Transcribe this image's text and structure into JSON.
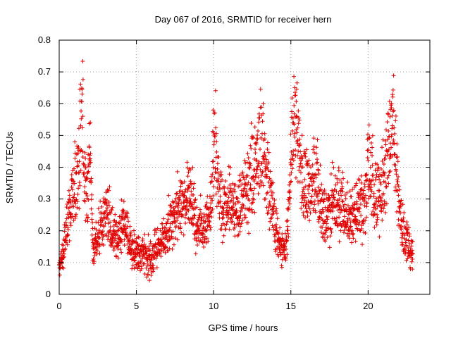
{
  "chart_data": {
    "type": "scatter",
    "marker": "+",
    "color": "#e00000",
    "title": "Day 067 of 2016, SRMTID for receiver hern",
    "xlabel": "GPS time / hours",
    "ylabel": "SRMTID / TECUs",
    "xlim": [
      0,
      24
    ],
    "ylim": [
      0,
      0.8
    ],
    "xticks": [
      0,
      5,
      10,
      15,
      20
    ],
    "xtick_labels": [
      "0",
      "5",
      "10",
      "15",
      "20"
    ],
    "yticks": [
      0,
      0.1,
      0.2,
      0.3,
      0.4,
      0.5,
      0.6,
      0.7,
      0.8
    ],
    "ytick_labels": [
      "0",
      "0.1",
      "0.2",
      "0.3",
      "0.4",
      "0.5",
      "0.6",
      "0.7",
      "0.8"
    ],
    "grid": true,
    "x_extent": [
      0,
      22.9
    ],
    "series": [
      {
        "name": "SRMTID",
        "approx_points": 2200,
        "x": [
          0,
          0.05,
          0.1,
          0.15,
          0.2,
          0.3,
          0.4,
          0.5,
          0.6,
          0.7,
          0.8,
          0.9,
          1.0,
          1.1,
          1.2,
          1.3,
          1.4,
          1.45,
          1.5,
          1.55,
          1.6,
          1.7,
          1.8,
          1.9,
          2.0,
          2.1,
          2.2,
          2.3,
          2.5,
          2.7,
          2.9,
          3.0,
          3.2,
          3.4,
          3.6,
          3.8,
          4.0,
          4.2,
          4.5,
          4.8,
          5.0,
          5.3,
          5.5,
          5.8,
          6.0,
          6.2,
          6.5,
          6.8,
          7.0,
          7.2,
          7.5,
          7.8,
          8.0,
          8.2,
          8.5,
          8.8,
          9.0,
          9.3,
          9.5,
          9.8,
          9.9,
          10.0,
          10.1,
          10.3,
          10.5,
          10.8,
          11.0,
          11.3,
          11.5,
          11.8,
          12.0,
          12.3,
          12.5,
          12.7,
          12.9,
          13.1,
          13.3,
          13.5,
          13.7,
          14.0,
          14.2,
          14.5,
          14.7,
          14.9,
          15.0,
          15.1,
          15.3,
          15.5,
          15.7,
          16.0,
          16.3,
          16.5,
          16.7,
          16.9,
          17.2,
          17.5,
          17.7,
          18.0,
          18.3,
          18.5,
          18.8,
          19.0,
          19.3,
          19.5,
          19.7,
          19.9,
          20.0,
          20.2,
          20.5,
          20.7,
          20.9,
          21.1,
          21.3,
          21.5,
          21.6,
          21.8,
          22.0,
          22.2,
          22.4,
          22.6,
          22.8
        ],
        "y": [
          0.05,
          0.09,
          0.12,
          0.11,
          0.13,
          0.15,
          0.2,
          0.27,
          0.3,
          0.32,
          0.35,
          0.36,
          0.4,
          0.42,
          0.5,
          0.55,
          0.65,
          0.72,
          0.78,
          0.7,
          0.45,
          0.4,
          0.35,
          0.45,
          0.52,
          0.3,
          0.15,
          0.17,
          0.2,
          0.25,
          0.28,
          0.35,
          0.3,
          0.22,
          0.2,
          0.18,
          0.22,
          0.26,
          0.2,
          0.15,
          0.14,
          0.13,
          0.15,
          0.12,
          0.11,
          0.15,
          0.18,
          0.2,
          0.22,
          0.25,
          0.3,
          0.32,
          0.35,
          0.4,
          0.35,
          0.28,
          0.25,
          0.22,
          0.26,
          0.35,
          0.45,
          0.55,
          0.6,
          0.42,
          0.35,
          0.3,
          0.33,
          0.32,
          0.3,
          0.35,
          0.38,
          0.42,
          0.48,
          0.5,
          0.55,
          0.6,
          0.5,
          0.42,
          0.35,
          0.25,
          0.2,
          0.15,
          0.18,
          0.35,
          0.5,
          0.6,
          0.65,
          0.55,
          0.45,
          0.4,
          0.42,
          0.45,
          0.48,
          0.35,
          0.28,
          0.3,
          0.35,
          0.38,
          0.33,
          0.3,
          0.28,
          0.26,
          0.3,
          0.33,
          0.3,
          0.4,
          0.5,
          0.45,
          0.38,
          0.35,
          0.4,
          0.48,
          0.55,
          0.6,
          0.65,
          0.5,
          0.35,
          0.25,
          0.2,
          0.18,
          0.15
        ]
      }
    ]
  }
}
